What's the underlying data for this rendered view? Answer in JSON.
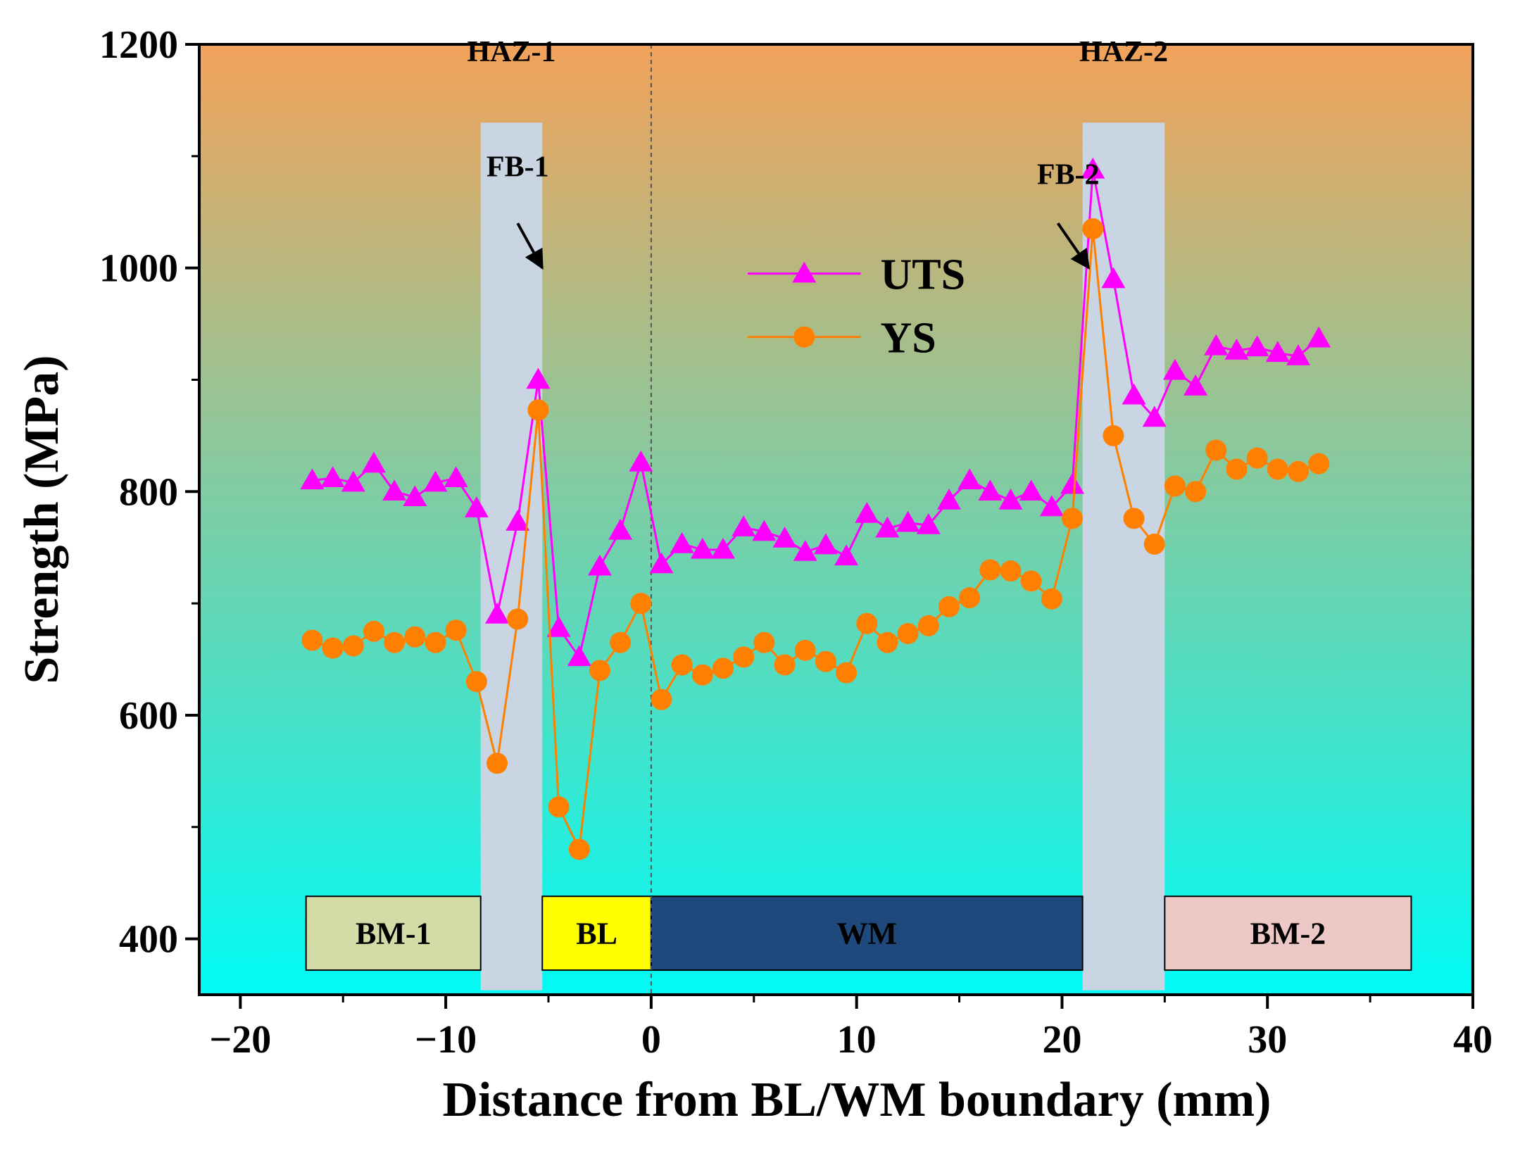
{
  "chart_data": {
    "type": "line",
    "title": "",
    "xlabel": "Distance from BL/WM boundary (mm)",
    "ylabel": "Strength (MPa)",
    "xlim": [
      -22,
      40
    ],
    "ylim": [
      350,
      1200
    ],
    "x_ticks": [
      -20,
      -10,
      0,
      10,
      20,
      30,
      40
    ],
    "x_tick_labels": [
      "−20",
      "−10",
      "0",
      "10",
      "20",
      "30",
      "40"
    ],
    "y_ticks": [
      400,
      600,
      800,
      1000,
      1200
    ],
    "y_tick_labels": [
      "400",
      "600",
      "800",
      "1000",
      "1200"
    ],
    "grid": false,
    "legend_position": "upper-center",
    "boundary_line_x": 0,
    "background_gradient": {
      "top": "#f2a25a",
      "bottom": "#00fbf5"
    },
    "series": [
      {
        "name": "UTS",
        "marker": "triangle",
        "color": "#ff00ff",
        "x": [
          -16.5,
          -15.5,
          -14.5,
          -13.5,
          -12.5,
          -11.5,
          -10.5,
          -9.5,
          -8.5,
          -7.5,
          -6.5,
          -5.5,
          -4.5,
          -3.5,
          -2.5,
          -1.5,
          -0.5,
          0.5,
          1.5,
          2.5,
          3.5,
          4.5,
          5.5,
          6.5,
          7.5,
          8.5,
          9.5,
          10.5,
          11.5,
          12.5,
          13.5,
          14.5,
          15.5,
          16.5,
          17.5,
          18.5,
          19.5,
          20.5,
          21.5,
          22.5,
          23.5,
          24.5,
          25.5,
          26.5,
          27.5,
          28.5,
          29.5,
          30.5,
          31.5,
          32.5
        ],
        "values": [
          810,
          812,
          808,
          825,
          800,
          795,
          808,
          812,
          785,
          690,
          773,
          900,
          678,
          652,
          733,
          765,
          826,
          735,
          753,
          748,
          748,
          768,
          764,
          758,
          746,
          752,
          742,
          780,
          767,
          772,
          770,
          792,
          810,
          800,
          792,
          800,
          786,
          806,
          1088,
          990,
          886,
          866,
          908,
          894,
          930,
          926,
          929,
          924,
          921,
          937
        ]
      },
      {
        "name": "YS",
        "marker": "circle",
        "color": "#ff8000",
        "x": [
          -16.5,
          -15.5,
          -14.5,
          -13.5,
          -12.5,
          -11.5,
          -10.5,
          -9.5,
          -8.5,
          -7.5,
          -6.5,
          -5.5,
          -4.5,
          -3.5,
          -2.5,
          -1.5,
          -0.5,
          0.5,
          1.5,
          2.5,
          3.5,
          4.5,
          5.5,
          6.5,
          7.5,
          8.5,
          9.5,
          10.5,
          11.5,
          12.5,
          13.5,
          14.5,
          15.5,
          16.5,
          17.5,
          18.5,
          19.5,
          20.5,
          21.5,
          22.5,
          23.5,
          24.5,
          25.5,
          26.5,
          27.5,
          28.5,
          29.5,
          30.5,
          31.5,
          32.5
        ],
        "values": [
          667,
          660,
          662,
          675,
          665,
          670,
          665,
          676,
          630,
          557,
          686,
          873,
          518,
          480,
          640,
          665,
          700,
          614,
          645,
          636,
          642,
          652,
          665,
          645,
          658,
          648,
          638,
          682,
          665,
          673,
          680,
          697,
          705,
          730,
          729,
          720,
          704,
          776,
          1035,
          850,
          776,
          753,
          805,
          800,
          837,
          820,
          830,
          820,
          818,
          825
        ]
      }
    ],
    "shaded_regions": [
      {
        "label": "HAZ-1",
        "x_start": -8.3,
        "x_end": -5.3,
        "color": "#c9d5e2"
      },
      {
        "label": "HAZ-2",
        "x_start": 21.0,
        "x_end": 25.0,
        "color": "#c9d5e2"
      }
    ],
    "zone_boxes": [
      {
        "label": "BM-1",
        "x_start": -16.8,
        "x_end": -8.3,
        "fill": "#d3dba6",
        "text_color": "#000000"
      },
      {
        "label": "BL",
        "x_start": -5.3,
        "x_end": 0,
        "fill": "#ffff00",
        "text_color": "#000000"
      },
      {
        "label": "WM",
        "x_start": 0,
        "x_end": 21.0,
        "fill": "#1f497d",
        "text_color": "#000000"
      },
      {
        "label": "BM-2",
        "x_start": 25.0,
        "x_end": 37.0,
        "fill": "#ecc9c6",
        "text_color": "#000000"
      }
    ],
    "zone_band_y": [
      372,
      438
    ],
    "annotations": [
      {
        "text": "FB-1",
        "arrow_to": [
          -5.3,
          1000
        ]
      },
      {
        "text": "FB-2",
        "arrow_to": [
          21.3,
          1000
        ]
      }
    ]
  }
}
